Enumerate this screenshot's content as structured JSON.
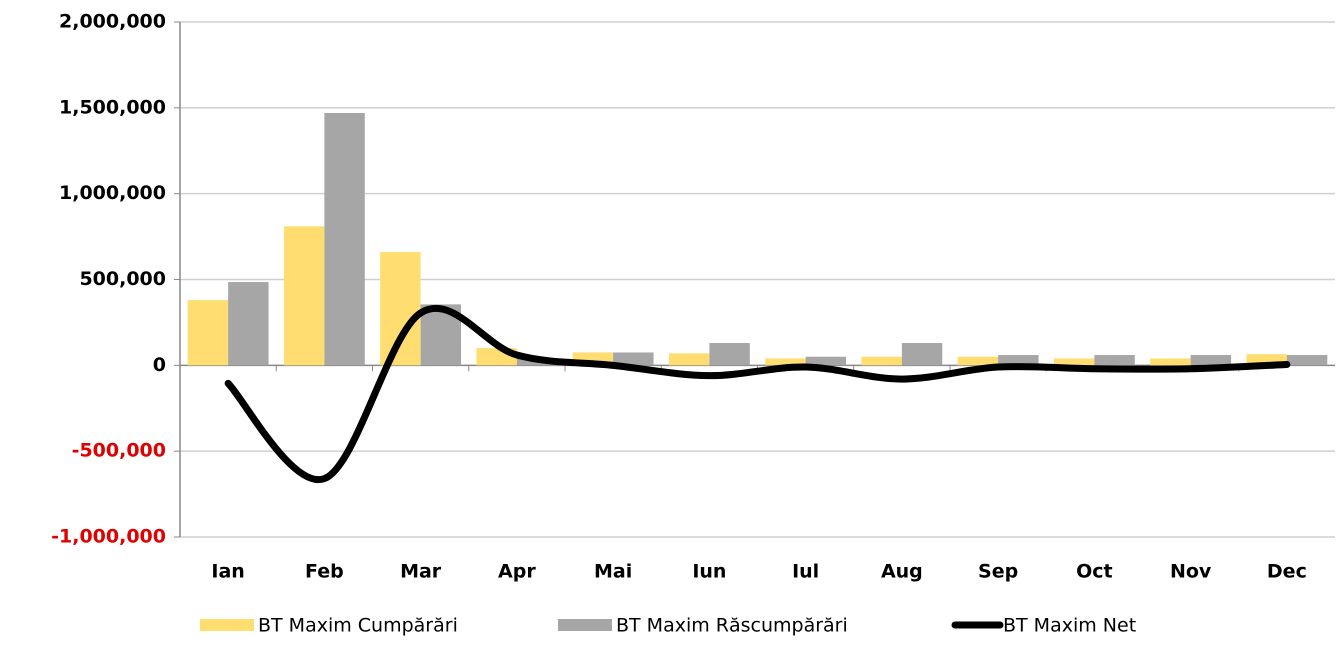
{
  "chart_data": {
    "type": "bar",
    "categories": [
      "Ian",
      "Feb",
      "Mar",
      "Apr",
      "Mai",
      "Iun",
      "Iul",
      "Aug",
      "Sep",
      "Oct",
      "Nov",
      "Dec"
    ],
    "series": [
      {
        "name": "BT Maxim Cumpărări",
        "type": "bar",
        "color": "#ffdd71",
        "values": [
          380000,
          810000,
          660000,
          100000,
          75000,
          70000,
          40000,
          50000,
          50000,
          40000,
          40000,
          65000
        ]
      },
      {
        "name": "BT Maxim Răscumpărări",
        "type": "bar",
        "color": "#a6a6a6",
        "values": [
          485000,
          1470000,
          355000,
          40000,
          75000,
          130000,
          50000,
          130000,
          60000,
          60000,
          60000,
          60000
        ]
      },
      {
        "name": "BT Maxim Net",
        "type": "line",
        "smooth": true,
        "color": "#000000",
        "values": [
          -105000,
          -660000,
          305000,
          60000,
          0,
          -60000,
          -10000,
          -80000,
          -10000,
          -20000,
          -20000,
          5000
        ]
      }
    ],
    "ylim": [
      -1000000,
      2000000
    ],
    "yticks": [
      {
        "value": -1000000,
        "label": "-1,000,000"
      },
      {
        "value": -500000,
        "label": "-500,000"
      },
      0,
      {
        "value": 500000,
        "label": "500,000"
      },
      {
        "value": 1000000,
        "label": "1,000,000"
      },
      {
        "value": 1500000,
        "label": "1,500,000"
      },
      {
        "value": 2000000,
        "label": "2,000,000"
      }
    ],
    "negative_tick_color": "#e00000",
    "grid": true,
    "legend": "bottom"
  }
}
